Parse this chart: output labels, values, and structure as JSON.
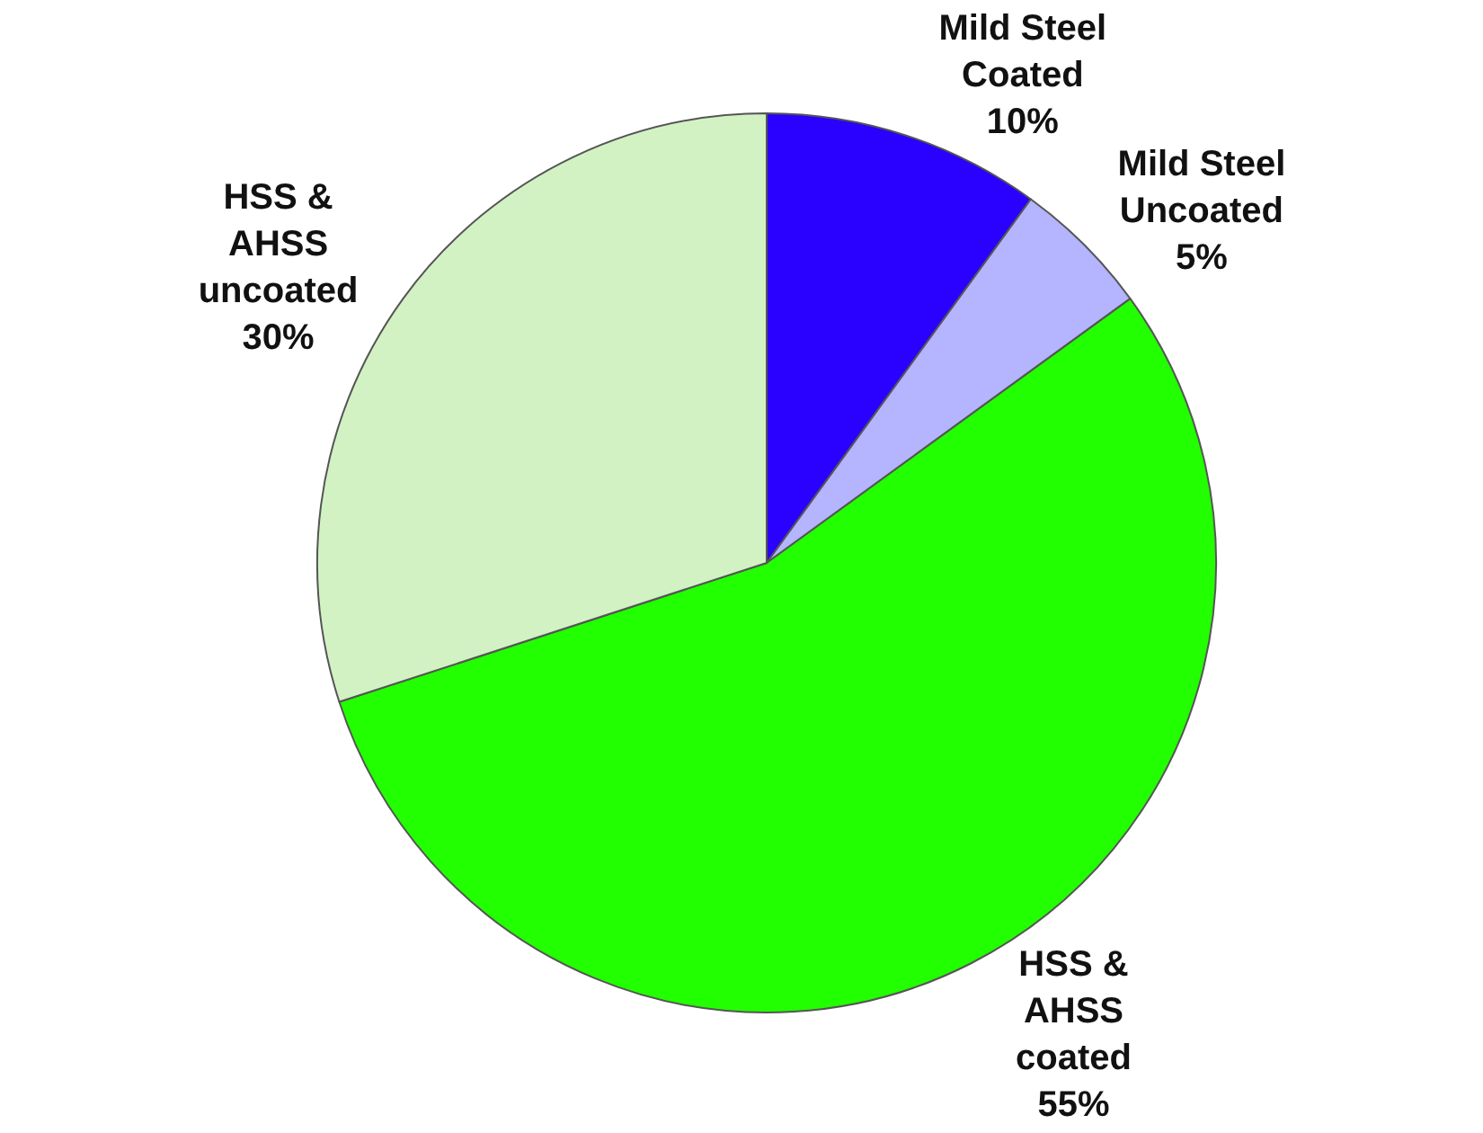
{
  "chart_data": {
    "type": "pie",
    "categories": [
      "Mild Steel\nCoated",
      "Mild Steel\nUncoated",
      "HSS &\nAHSS\ncoated",
      "HSS &\nAHSS\nuncoated"
    ],
    "values": [
      10,
      5,
      55,
      30
    ],
    "value_labels": [
      "10%",
      "5%",
      "55%",
      "30%"
    ],
    "colors": [
      "#2a00ff",
      "#b4b4ff",
      "#22ff00",
      "#d2f2c4"
    ],
    "legend": false
  }
}
